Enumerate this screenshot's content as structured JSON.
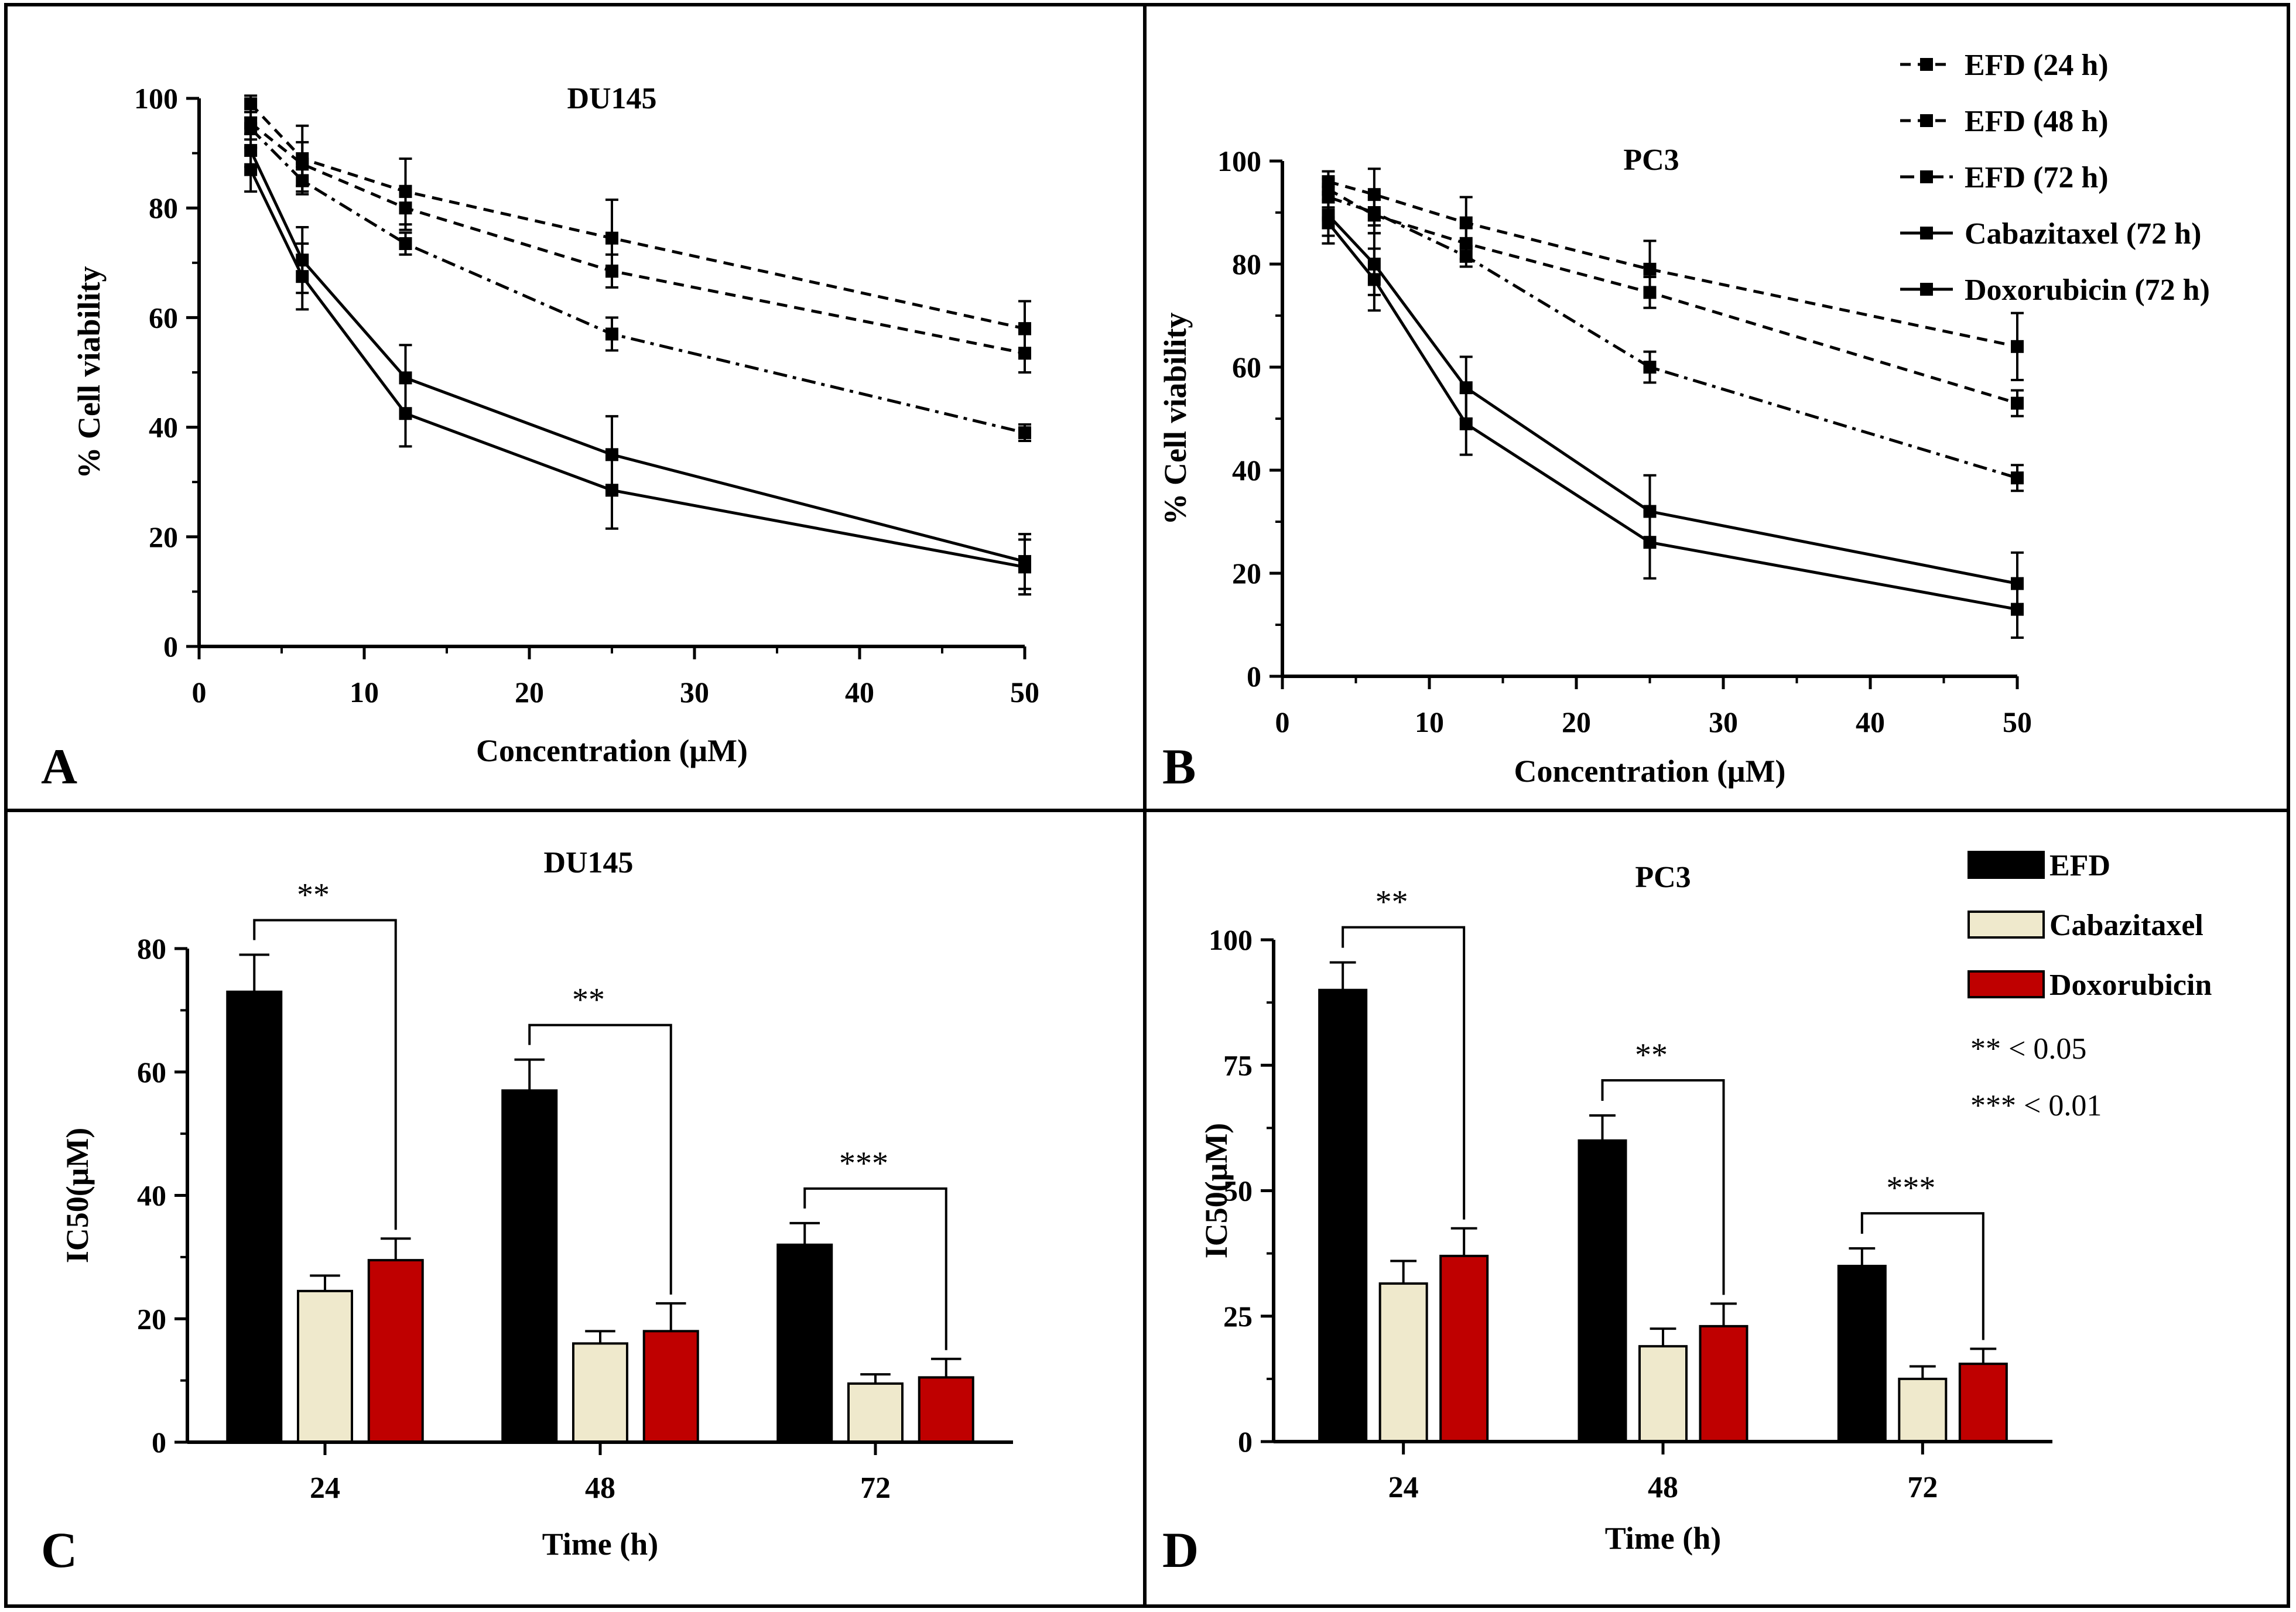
{
  "figure": {
    "panel_letters": [
      "A",
      "B",
      "C",
      "D"
    ],
    "colors": {
      "efd_bar": "#000000",
      "cabazitaxel_bar": "#efe9cc",
      "doxorubicin_bar": "#bf0000",
      "line": "#000000",
      "border": "#000000"
    }
  },
  "chart_data": [
    {
      "id": "A",
      "type": "line",
      "title": "DU145",
      "xlabel": "Concentration (μM)",
      "ylabel": "% Cell viability",
      "xlim": [
        0,
        50
      ],
      "ylim": [
        0,
        100
      ],
      "xticks": [
        0,
        10,
        20,
        30,
        40,
        50
      ],
      "yticks": [
        0,
        20,
        40,
        60,
        80,
        100
      ],
      "x": [
        3.125,
        6.25,
        12.5,
        25,
        50
      ],
      "series": [
        {
          "name": "EFD (24 h)",
          "style": "dash",
          "values": [
            99,
            89,
            83,
            74.5,
            58
          ],
          "errors": [
            1.5,
            6,
            6,
            7,
            5
          ]
        },
        {
          "name": "EFD (48 h)",
          "style": "dash",
          "values": [
            95.5,
            88,
            80,
            68.5,
            53.5
          ],
          "errors": [
            2,
            4,
            4,
            3,
            3.5
          ]
        },
        {
          "name": "EFD (72 h)",
          "style": "dashdot",
          "values": [
            94.5,
            85,
            73.5,
            57,
            39
          ],
          "errors": [
            2,
            2.5,
            2,
            3,
            1.5
          ]
        },
        {
          "name": "Cabazitaxel (72 h)",
          "style": "solid",
          "values": [
            90.5,
            70.5,
            49,
            35,
            15.5
          ],
          "errors": [
            3,
            6,
            6,
            7,
            5
          ]
        },
        {
          "name": "Doxorubicin (72 h)",
          "style": "solid",
          "values": [
            87,
            67.5,
            42.5,
            28.5,
            14.5
          ],
          "errors": [
            4,
            6,
            6,
            7,
            5
          ]
        }
      ]
    },
    {
      "id": "B",
      "type": "line",
      "title": "PC3",
      "xlabel": "Concentration (μM)",
      "ylabel": "% Cell viability",
      "xlim": [
        0,
        50
      ],
      "ylim": [
        0,
        100
      ],
      "xticks": [
        0,
        10,
        20,
        30,
        40,
        50
      ],
      "yticks": [
        0,
        20,
        40,
        60,
        80,
        100
      ],
      "x": [
        3.125,
        6.25,
        12.5,
        25,
        50
      ],
      "legend": [
        "EFD (24 h)",
        "EFD (48 h)",
        "EFD (72 h)",
        "Cabazitaxel (72 h)",
        "Doxorubicin (72 h)"
      ],
      "series": [
        {
          "name": "EFD (24 h)",
          "style": "dash",
          "values": [
            96,
            93.5,
            88,
            79,
            64
          ],
          "errors": [
            2,
            5,
            5,
            5.5,
            6.5
          ]
        },
        {
          "name": "EFD (48 h)",
          "style": "dash",
          "values": [
            94.5,
            89.5,
            84,
            74.5,
            53
          ],
          "errors": [
            2,
            3.5,
            3,
            3,
            2.5
          ]
        },
        {
          "name": "EFD (72 h)",
          "style": "dashdot",
          "values": [
            93,
            90,
            81.5,
            60,
            38.5
          ],
          "errors": [
            2,
            2.5,
            2,
            3,
            2.5
          ]
        },
        {
          "name": "Cabazitaxel (72 h)",
          "style": "solid",
          "values": [
            89.5,
            80,
            56,
            32,
            18
          ],
          "errors": [
            4,
            6,
            6,
            7,
            6
          ]
        },
        {
          "name": "Doxorubicin (72 h)",
          "style": "solid",
          "values": [
            88,
            77,
            49,
            26,
            13
          ],
          "errors": [
            4,
            6,
            6,
            7,
            5.5
          ]
        }
      ]
    },
    {
      "id": "C",
      "type": "bar",
      "title": "DU145",
      "xlabel": "Time (h)",
      "ylabel": "IC50(μM)",
      "categories": [
        "24",
        "48",
        "72"
      ],
      "ylim": [
        0,
        80
      ],
      "yticks": [
        0,
        20,
        40,
        60,
        80
      ],
      "series": [
        {
          "name": "EFD",
          "values": [
            73,
            57,
            32
          ],
          "errors": [
            6,
            5,
            3.5
          ]
        },
        {
          "name": "Cabazitaxel",
          "values": [
            24.5,
            16,
            9.5
          ],
          "errors": [
            2.5,
            2,
            1.5
          ]
        },
        {
          "name": "Doxorubicin",
          "values": [
            29.5,
            18,
            10.5
          ],
          "errors": [
            3.5,
            4.5,
            3
          ]
        }
      ],
      "significance": [
        "**",
        "**",
        "***"
      ]
    },
    {
      "id": "D",
      "type": "bar",
      "title": "PC3",
      "xlabel": "Time (h)",
      "ylabel": "IC50(μM)",
      "categories": [
        "24",
        "48",
        "72"
      ],
      "ylim": [
        0,
        100
      ],
      "yticks": [
        0,
        25,
        50,
        75,
        100
      ],
      "legend": [
        "EFD",
        "Cabazitaxel",
        "Doxorubicin"
      ],
      "series": [
        {
          "name": "EFD",
          "values": [
            90,
            60,
            35
          ],
          "errors": [
            5.5,
            5,
            3.5
          ]
        },
        {
          "name": "Cabazitaxel",
          "values": [
            31.5,
            19,
            12.5
          ],
          "errors": [
            4.5,
            3.5,
            2.5
          ]
        },
        {
          "name": "Doxorubicin",
          "values": [
            37,
            23,
            15.5
          ],
          "errors": [
            5.5,
            4.5,
            3
          ]
        }
      ],
      "significance": [
        "**",
        "**",
        "***"
      ],
      "significance_key": [
        "** < 0.05",
        "*** < 0.01"
      ]
    }
  ]
}
